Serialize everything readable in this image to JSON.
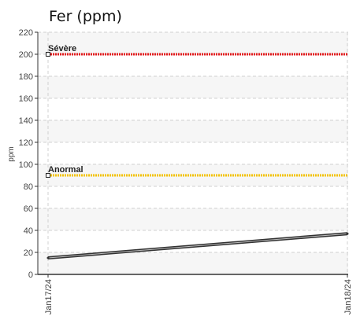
{
  "chart_data": {
    "type": "line",
    "title": "Fer (ppm)",
    "ylabel": "ppm",
    "xlabel": "",
    "ylim": [
      0,
      220
    ],
    "yticks": [
      0,
      20,
      40,
      60,
      80,
      100,
      120,
      140,
      160,
      180,
      200,
      220
    ],
    "categories": [
      "Jan17/24",
      "Jan18/24"
    ],
    "series": [
      {
        "values": [
          15,
          37
        ],
        "color": "#333333"
      }
    ],
    "thresholds": [
      {
        "label": "Sévère",
        "value": 200,
        "color": "#e31a1c"
      },
      {
        "label": "Anormal",
        "value": 90,
        "color": "#f2c200"
      }
    ],
    "grid": true,
    "colors": {
      "grid": "#d0d0d0",
      "band": "#f6f6f6",
      "axis": "#333333"
    }
  }
}
